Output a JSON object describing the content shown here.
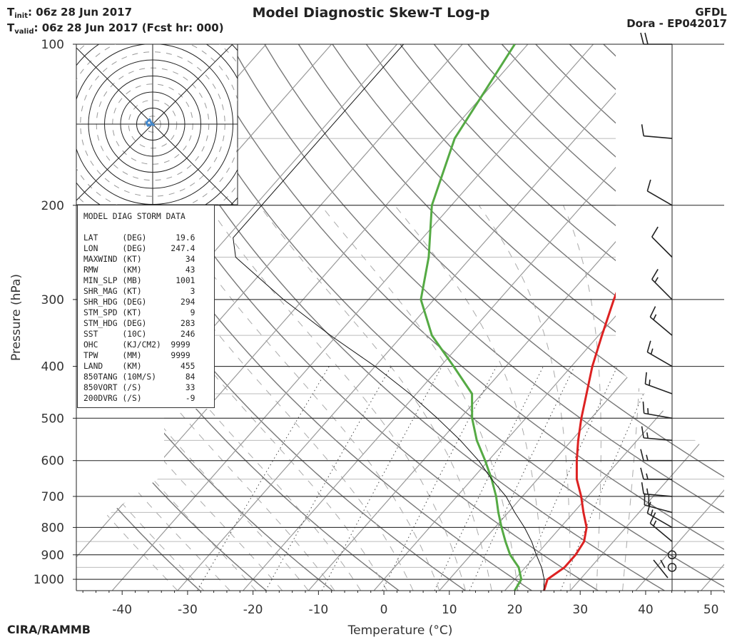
{
  "header": {
    "init_prefix": "T",
    "init_sub": "init",
    "init_text": ":  06z 28 Jun 2017",
    "valid_prefix": "T",
    "valid_sub": "valid",
    "valid_text": ": 06z 28 Jun 2017 (Fcst hr: 000)",
    "title": "Model Diagnostic Skew-T Log-p",
    "model": "GFDL",
    "storm": "Dora - EP042017",
    "credit": "CIRA/RAMMB"
  },
  "colors": {
    "temperature": "#dd2222",
    "dewpoint": "#55aa44",
    "parcel": "#111111",
    "hodograph": "#4488cc"
  },
  "chart_data": {
    "type": "line",
    "title": "Model Diagnostic Skew-T Log-p",
    "xlabel": "Temperature (°C)",
    "ylabel": "Pressure (hPa)",
    "xlim": [
      -47,
      52
    ],
    "ylim": [
      1050,
      100
    ],
    "x_ticks": [
      -40,
      -30,
      -20,
      -10,
      0,
      10,
      20,
      30,
      40,
      50
    ],
    "y_ticks": [
      1000,
      900,
      800,
      700,
      600,
      500,
      400,
      300,
      200,
      100
    ],
    "skew_deg_per_decade": 72,
    "series": [
      {
        "name": "Temperature",
        "points": [
          [
            26,
            1050
          ],
          [
            25,
            1000
          ],
          [
            26,
            950
          ],
          [
            26,
            900
          ],
          [
            25.5,
            850
          ],
          [
            24,
            800
          ],
          [
            21.5,
            750
          ],
          [
            19,
            700
          ],
          [
            16,
            650
          ],
          [
            13.5,
            600
          ],
          [
            11,
            550
          ],
          [
            8.5,
            500
          ],
          [
            6,
            450
          ],
          [
            3.2,
            400
          ],
          [
            0.5,
            350
          ],
          [
            -2.5,
            300
          ],
          [
            -5.7,
            250
          ],
          [
            -8.8,
            200
          ],
          [
            -13,
            150
          ],
          [
            -16.5,
            100
          ]
        ]
      },
      {
        "name": "Dewpoint",
        "points": [
          [
            21.5,
            1050
          ],
          [
            21,
            1000
          ],
          [
            19,
            950
          ],
          [
            16,
            900
          ],
          [
            13.5,
            850
          ],
          [
            11,
            800
          ],
          [
            8.5,
            750
          ],
          [
            6,
            700
          ],
          [
            3,
            650
          ],
          [
            -0.5,
            600
          ],
          [
            -4.5,
            550
          ],
          [
            -8.2,
            500
          ],
          [
            -11.5,
            450
          ],
          [
            -18,
            400
          ],
          [
            -25.5,
            350
          ],
          [
            -32,
            300
          ],
          [
            -36.5,
            250
          ],
          [
            -43,
            200
          ],
          [
            -48.5,
            150
          ],
          [
            -52,
            100
          ]
        ]
      },
      {
        "name": "Parcel",
        "points": [
          [
            26,
            1050
          ],
          [
            24.5,
            1000
          ],
          [
            22.5,
            950
          ],
          [
            20,
            900
          ],
          [
            17.5,
            850
          ],
          [
            14.5,
            800
          ],
          [
            11,
            750
          ],
          [
            7.5,
            700
          ],
          [
            3,
            650
          ],
          [
            -1.5,
            600
          ],
          [
            -7,
            550
          ],
          [
            -13.5,
            500
          ],
          [
            -21,
            450
          ],
          [
            -30,
            400
          ],
          [
            -41,
            350
          ],
          [
            -53,
            300
          ],
          [
            -66,
            250
          ],
          [
            -69,
            230
          ],
          [
            -69,
            100
          ]
        ]
      }
    ],
    "wind_barbs": [
      {
        "p": 100,
        "speed": 20,
        "dir": 270
      },
      {
        "p": 150,
        "speed": 10,
        "dir": 275
      },
      {
        "p": 200,
        "speed": 12,
        "dir": 300
      },
      {
        "p": 250,
        "speed": 12,
        "dir": 315
      },
      {
        "p": 300,
        "speed": 15,
        "dir": 315
      },
      {
        "p": 350,
        "speed": 15,
        "dir": 310
      },
      {
        "p": 400,
        "speed": 15,
        "dir": 300
      },
      {
        "p": 450,
        "speed": 15,
        "dir": 290
      },
      {
        "p": 500,
        "speed": 15,
        "dir": 280
      },
      {
        "p": 550,
        "speed": 15,
        "dir": 275
      },
      {
        "p": 600,
        "speed": 15,
        "dir": 270
      },
      {
        "p": 650,
        "speed": 15,
        "dir": 270
      },
      {
        "p": 700,
        "speed": 15,
        "dir": 275
      },
      {
        "p": 750,
        "speed": 20,
        "dir": 285
      },
      {
        "p": 800,
        "speed": 15,
        "dir": 300
      },
      {
        "p": 850,
        "speed": 15,
        "dir": 310
      },
      {
        "p": 900,
        "speed": 0,
        "dir": 0
      },
      {
        "p": 950,
        "speed": 0,
        "dir": 0
      }
    ],
    "hodograph": {
      "rings": 5,
      "ring_step_kt": 10,
      "trace_kt": [
        [
          0,
          0
        ],
        [
          -3,
          -1
        ],
        [
          -4,
          1
        ],
        [
          -2,
          3
        ],
        [
          -1,
          1
        ],
        [
          1,
          -1
        ]
      ]
    }
  },
  "storm_data": {
    "header": "MODEL DIAG STORM DATA",
    "rows": [
      "LAT     (DEG)      19.6",
      "LON     (DEG)     247.4",
      "MAXWIND (KT)         34",
      "RMW     (KM)         43",
      "MIN_SLP (MB)       1001",
      "SHR_MAG (KT)          3",
      "SHR_HDG (DEG)       294",
      "STM_SPD (KT)          9",
      "STM_HDG (DEG)       283",
      "SST     (10C)       246",
      "OHC     (KJ/CM2)  9999",
      "TPW     (MM)      9999",
      "LAND    (KM)        455",
      "850TANG (10M/S)      84",
      "850VORT (/S)         33",
      "200DVRG (/S)         -9"
    ]
  }
}
